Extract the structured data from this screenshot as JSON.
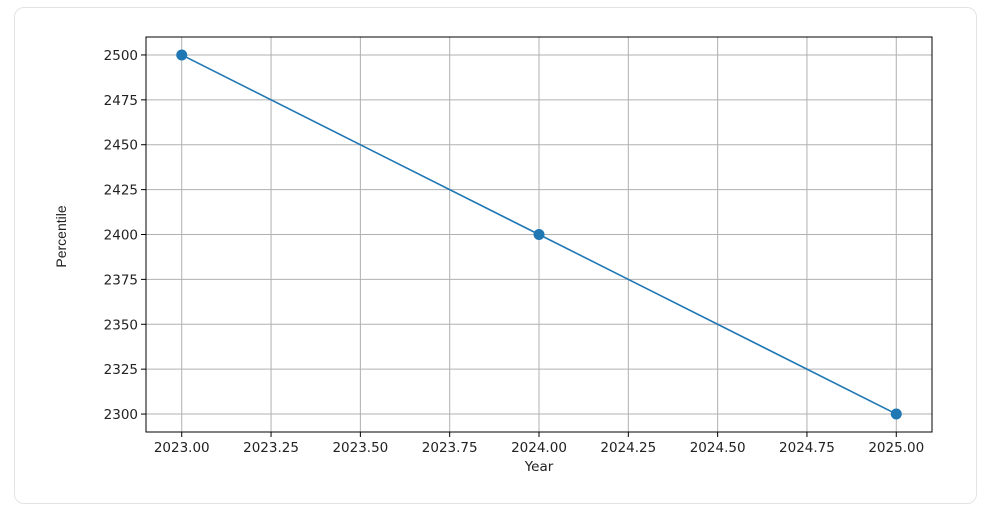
{
  "chart_data": {
    "type": "line",
    "title": "",
    "xlabel": "Year",
    "ylabel": "Percentile",
    "x": [
      2023,
      2024,
      2025
    ],
    "series": [
      {
        "values": [
          2500,
          2400,
          2300
        ],
        "color": "#1f77b4",
        "marker": "circle"
      }
    ],
    "xlim": [
      2022.9,
      2025.1
    ],
    "ylim": [
      2290,
      2510
    ],
    "xticks": [
      2023.0,
      2023.25,
      2023.5,
      2023.75,
      2024.0,
      2024.25,
      2024.5,
      2024.75,
      2025.0
    ],
    "xtick_labels": [
      "2023.00",
      "2023.25",
      "2023.50",
      "2023.75",
      "2024.00",
      "2024.25",
      "2024.50",
      "2024.75",
      "2025.00"
    ],
    "yticks": [
      2300,
      2325,
      2350,
      2375,
      2400,
      2425,
      2450,
      2475,
      2500
    ],
    "ytick_labels": [
      "2300",
      "2325",
      "2350",
      "2375",
      "2400",
      "2425",
      "2450",
      "2475",
      "2500"
    ],
    "grid": true,
    "legend": "none"
  }
}
